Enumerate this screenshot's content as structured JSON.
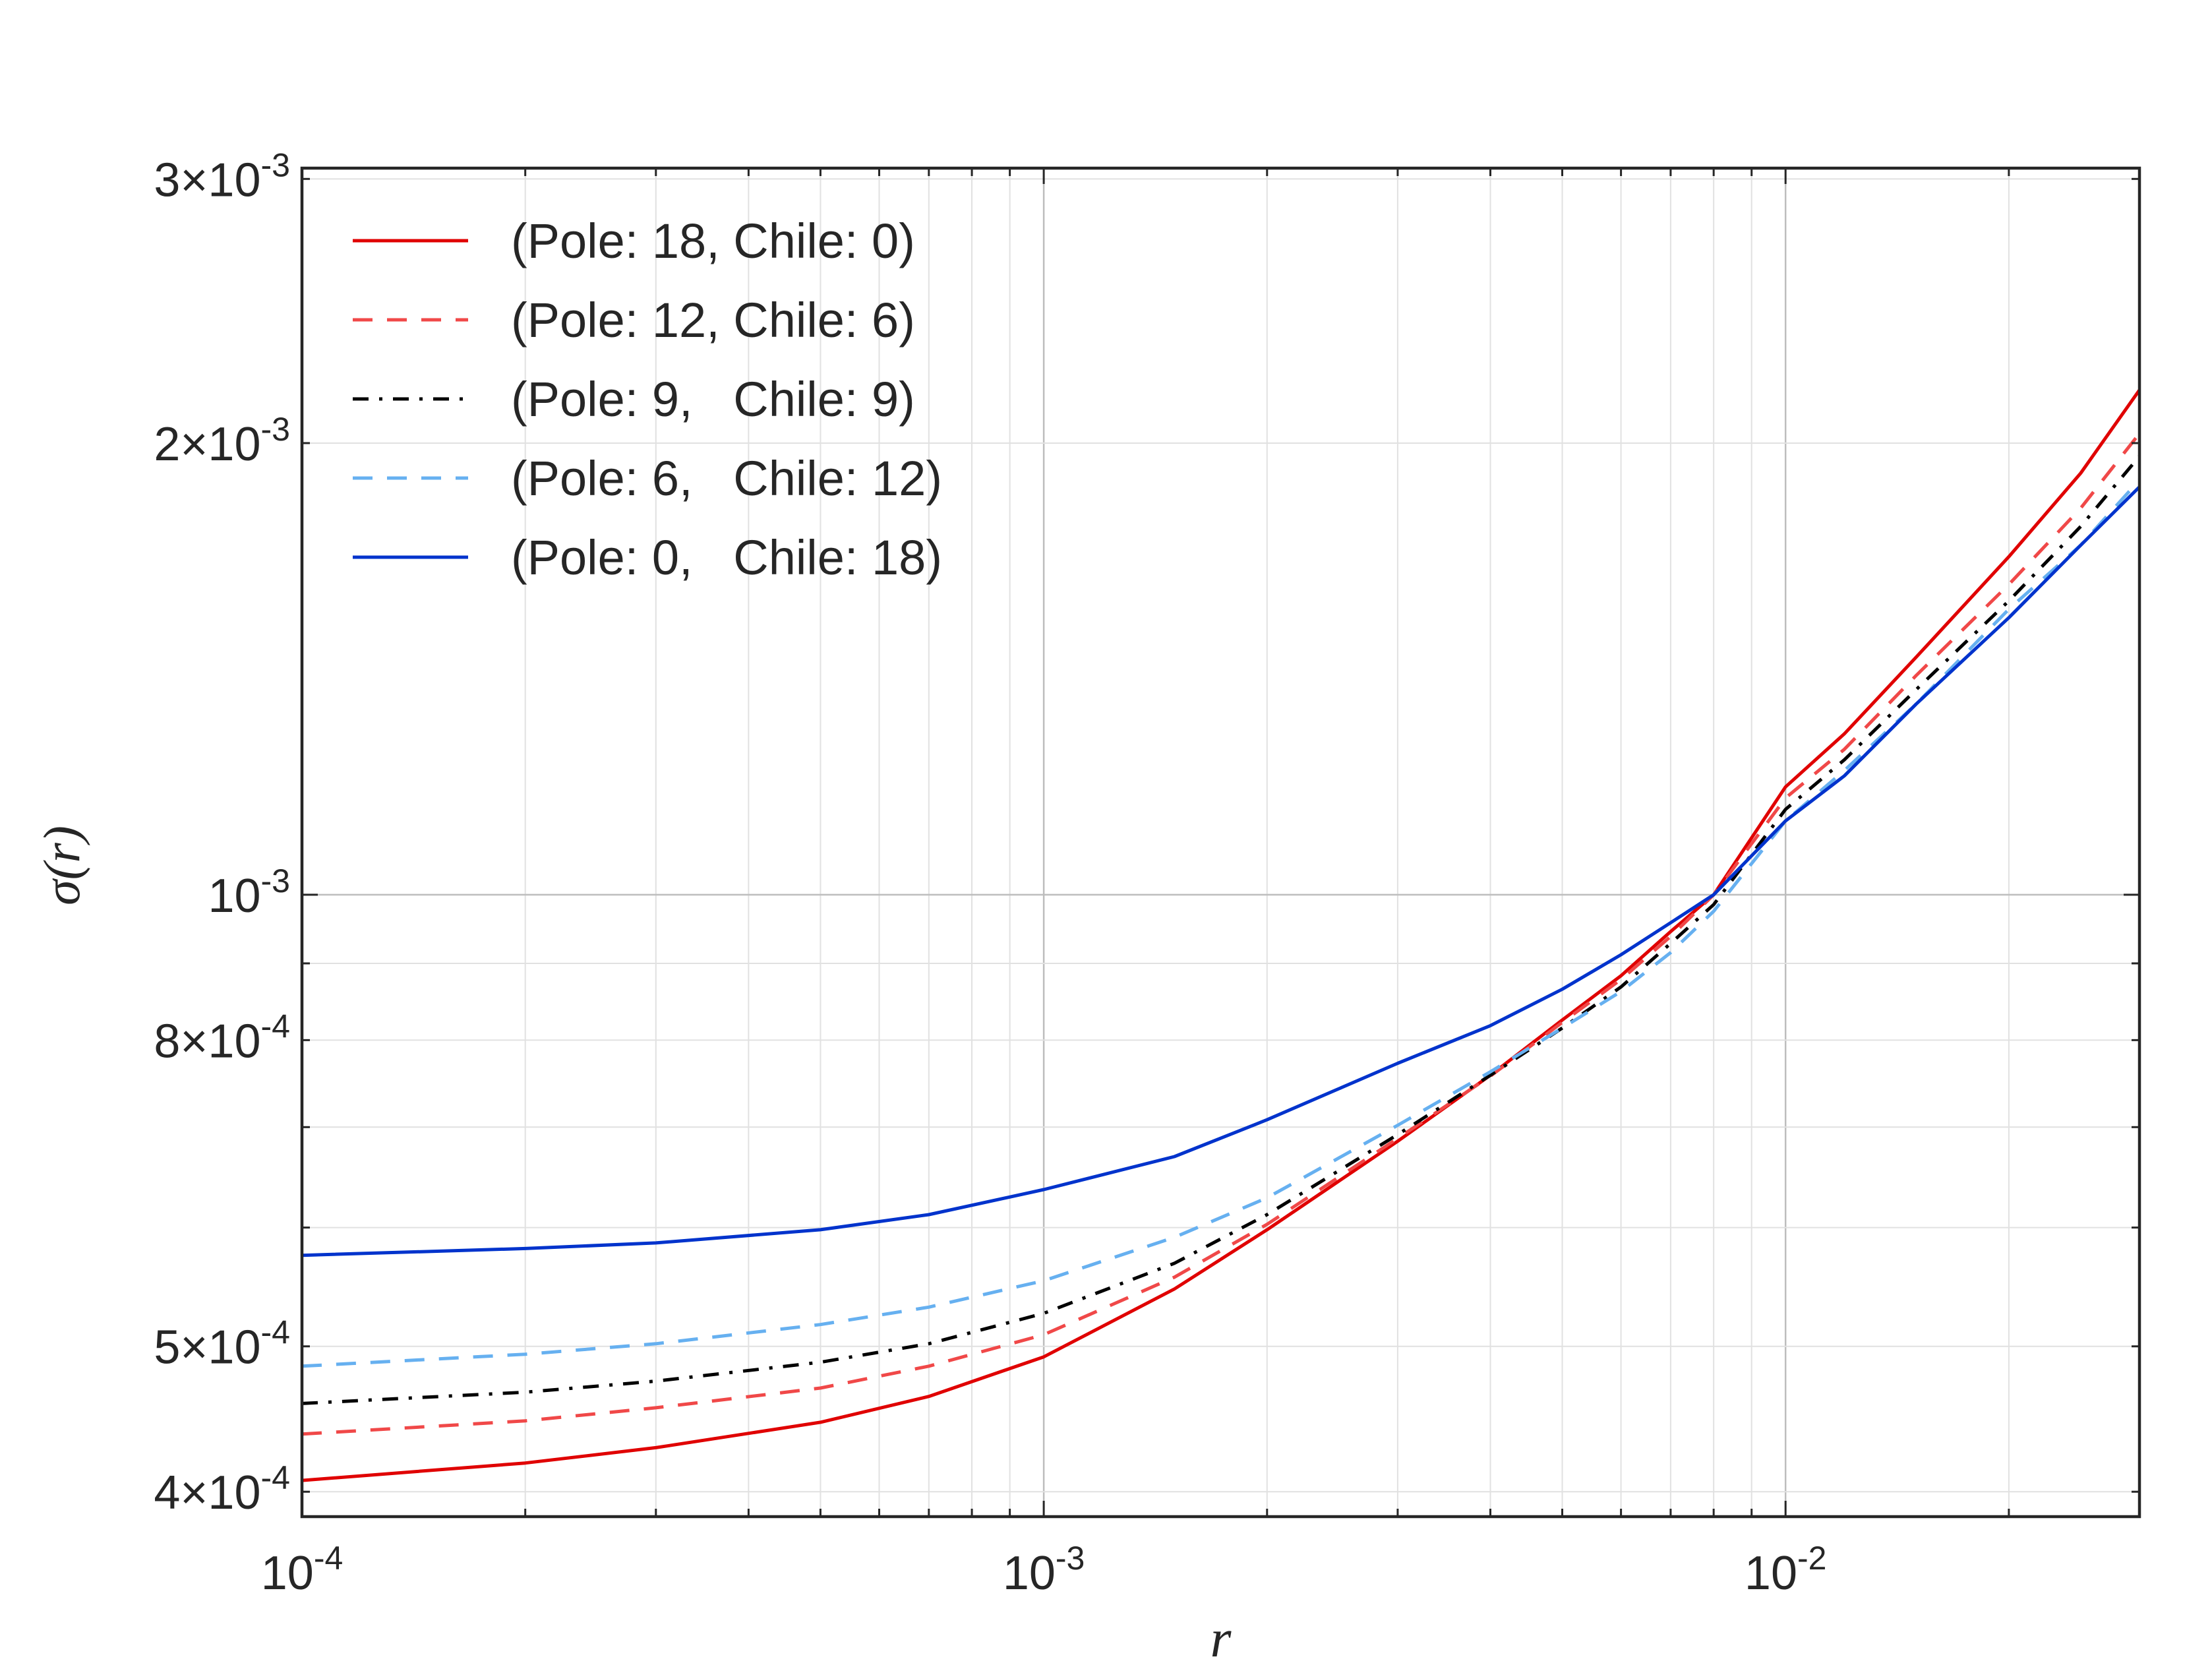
{
  "chart_data": {
    "type": "line",
    "xscale": "log",
    "yscale": "log",
    "xlim": [
      0.0001,
      0.03
    ],
    "ylim": [
      0.000385,
      0.00305
    ],
    "grid": true,
    "legend_position": "top-left",
    "xlabel": "r",
    "ylabel": "σ(r)",
    "x_ticks": [
      {
        "value": 0.0001,
        "mantissa": "",
        "base": "10",
        "exp": "-4"
      },
      {
        "value": 0.001,
        "mantissa": "",
        "base": "10",
        "exp": "-3"
      },
      {
        "value": 0.01,
        "mantissa": "",
        "base": "10",
        "exp": "-2"
      }
    ],
    "y_ticks": [
      {
        "value": 0.0004,
        "mantissa": "4×",
        "base": "10",
        "exp": "-4"
      },
      {
        "value": 0.0005,
        "mantissa": "5×",
        "base": "10",
        "exp": "-4"
      },
      {
        "value": 0.0008,
        "mantissa": "8×",
        "base": "10",
        "exp": "-4"
      },
      {
        "value": 0.001,
        "mantissa": "",
        "base": "10",
        "exp": "-3"
      },
      {
        "value": 0.002,
        "mantissa": "2×",
        "base": "10",
        "exp": "-3"
      },
      {
        "value": 0.003,
        "mantissa": "3×",
        "base": "10",
        "exp": "-3"
      }
    ],
    "series": [
      {
        "name": "(Pole: 18, Chile: 0)",
        "color": "#e00000",
        "dash": "solid",
        "x": [
          0.0001,
          0.0002,
          0.0003,
          0.0005,
          0.0007,
          0.001,
          0.0015,
          0.002,
          0.003,
          0.004,
          0.005,
          0.006,
          0.007,
          0.008,
          0.01,
          0.012,
          0.015,
          0.02,
          0.025,
          0.03
        ],
        "y": [
          0.000407,
          0.000418,
          0.000428,
          0.000445,
          0.000463,
          0.000492,
          0.000546,
          0.000598,
          0.000685,
          0.000758,
          0.000825,
          0.000883,
          0.000945,
          0.001,
          0.00118,
          0.00128,
          0.00144,
          0.00168,
          0.00191,
          0.00217
        ]
      },
      {
        "name": "(Pole: 12, Chile: 6)",
        "color": "#f04848",
        "dash": "dashed",
        "x": [
          0.0001,
          0.0002,
          0.0003,
          0.0005,
          0.0007,
          0.001,
          0.0015,
          0.002,
          0.003,
          0.004,
          0.005,
          0.006,
          0.007,
          0.008,
          0.01,
          0.012,
          0.015,
          0.02,
          0.025,
          0.03
        ],
        "y": [
          0.000437,
          0.000446,
          0.000455,
          0.000469,
          0.000485,
          0.000509,
          0.000556,
          0.000603,
          0.000688,
          0.000757,
          0.000822,
          0.000878,
          0.000938,
          0.001,
          0.00116,
          0.00125,
          0.0014,
          0.00161,
          0.00181,
          0.00203
        ]
      },
      {
        "name": "(Pole: 9,   Chile: 9)",
        "color": "#000000",
        "dash": "dashdot",
        "x": [
          0.0001,
          0.0002,
          0.0003,
          0.0005,
          0.0007,
          0.001,
          0.0015,
          0.002,
          0.003,
          0.004,
          0.005,
          0.006,
          0.007,
          0.008,
          0.01,
          0.012,
          0.015,
          0.02,
          0.025,
          0.03
        ],
        "y": [
          0.000458,
          0.000466,
          0.000474,
          0.000488,
          0.000502,
          0.000526,
          0.000568,
          0.000612,
          0.000692,
          0.000758,
          0.000815,
          0.000868,
          0.000928,
          0.000985,
          0.00114,
          0.00123,
          0.00137,
          0.00157,
          0.00176,
          0.00196
        ]
      },
      {
        "name": "(Pole: 6,   Chile: 12)",
        "color": "#66b0f0",
        "dash": "dashed",
        "x": [
          0.0001,
          0.0002,
          0.0003,
          0.0005,
          0.0007,
          0.001,
          0.0015,
          0.002,
          0.003,
          0.004,
          0.005,
          0.006,
          0.007,
          0.008,
          0.01,
          0.012,
          0.015,
          0.02,
          0.025,
          0.03
        ],
        "y": [
          0.000485,
          0.000494,
          0.000502,
          0.000517,
          0.000531,
          0.000553,
          0.000591,
          0.000628,
          0.000702,
          0.000762,
          0.000815,
          0.000862,
          0.000915,
          0.000975,
          0.00112,
          0.00121,
          0.00134,
          0.00155,
          0.00171,
          0.00189
        ]
      },
      {
        "name": "(Pole: 0,   Chile: 18)",
        "color": "#0033cc",
        "dash": "solid",
        "x": [
          0.0001,
          0.0002,
          0.0003,
          0.0005,
          0.0007,
          0.001,
          0.0015,
          0.002,
          0.003,
          0.004,
          0.005,
          0.006,
          0.007,
          0.008,
          0.01,
          0.012,
          0.015,
          0.02,
          0.025,
          0.03
        ],
        "y": [
          0.000575,
          0.000581,
          0.000586,
          0.000598,
          0.000612,
          0.000636,
          0.000669,
          0.000708,
          0.000772,
          0.000818,
          0.000865,
          0.000912,
          0.000958,
          0.001,
          0.00112,
          0.0012,
          0.00134,
          0.00153,
          0.00171,
          0.00187
        ]
      }
    ]
  }
}
